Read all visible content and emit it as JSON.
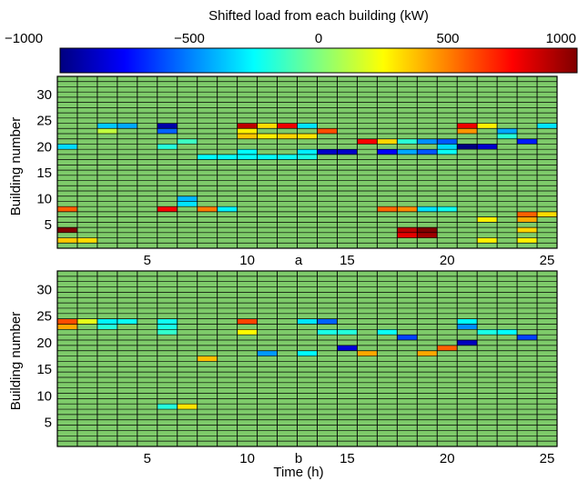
{
  "chart_data": {
    "type": "heatmap",
    "colorbar": {
      "title": "Shifted load from each building (kW)",
      "range": [
        -1000,
        1000
      ],
      "ticks": [
        -1000,
        -500,
        0,
        500,
        1000
      ],
      "tick_labels": [
        "−1000",
        "−500",
        "0",
        "500",
        "1000"
      ],
      "colormap": "jet"
    },
    "panels": [
      {
        "subplot_label": "a",
        "xlabel": "",
        "ylabel": "Building number",
        "x_range": [
          1,
          25
        ],
        "y_range": [
          1,
          33
        ],
        "x_ticks": [
          5,
          10,
          15,
          20,
          25
        ],
        "y_ticks": [
          5,
          10,
          15,
          20,
          25,
          30
        ],
        "grid": true,
        "cells": [
          {
            "t": 1,
            "b": 20,
            "v": -320
          },
          {
            "t": 1,
            "b": 8,
            "v": 570
          },
          {
            "t": 1,
            "b": 4,
            "v": 1000
          },
          {
            "t": 1,
            "b": 2,
            "v": 360
          },
          {
            "t": 2,
            "b": 2,
            "v": 320
          },
          {
            "t": 3,
            "b": 24,
            "v": -360
          },
          {
            "t": 3,
            "b": 23,
            "v": 130
          },
          {
            "t": 4,
            "b": 24,
            "v": -420
          },
          {
            "t": 6,
            "b": 24,
            "v": -920
          },
          {
            "t": 6,
            "b": 23,
            "v": -560
          },
          {
            "t": 6,
            "b": 20,
            "v": -180
          },
          {
            "t": 6,
            "b": 8,
            "v": 760
          },
          {
            "t": 7,
            "b": 21,
            "v": -130
          },
          {
            "t": 7,
            "b": 10,
            "v": -390
          },
          {
            "t": 7,
            "b": 9,
            "v": -300
          },
          {
            "t": 8,
            "b": 18,
            "v": -250
          },
          {
            "t": 8,
            "b": 8,
            "v": 510
          },
          {
            "t": 9,
            "b": 18,
            "v": -240
          },
          {
            "t": 9,
            "b": 8,
            "v": -270
          },
          {
            "t": 10,
            "b": 24,
            "v": 880
          },
          {
            "t": 10,
            "b": 23,
            "v": 280
          },
          {
            "t": 10,
            "b": 22,
            "v": 360
          },
          {
            "t": 10,
            "b": 19,
            "v": -250
          },
          {
            "t": 10,
            "b": 18,
            "v": -240
          },
          {
            "t": 11,
            "b": 24,
            "v": 320
          },
          {
            "t": 11,
            "b": 22,
            "v": 280
          },
          {
            "t": 11,
            "b": 18,
            "v": -240
          },
          {
            "t": 12,
            "b": 24,
            "v": 780
          },
          {
            "t": 12,
            "b": 22,
            "v": 330
          },
          {
            "t": 12,
            "b": 18,
            "v": -230
          },
          {
            "t": 13,
            "b": 24,
            "v": -300
          },
          {
            "t": 13,
            "b": 22,
            "v": 300
          },
          {
            "t": 13,
            "b": 19,
            "v": -280
          },
          {
            "t": 13,
            "b": 18,
            "v": -200
          },
          {
            "t": 14,
            "b": 23,
            "v": 600
          },
          {
            "t": 14,
            "b": 19,
            "v": -860
          },
          {
            "t": 15,
            "b": 19,
            "v": -860
          },
          {
            "t": 16,
            "b": 21,
            "v": 760
          },
          {
            "t": 17,
            "b": 21,
            "v": 330
          },
          {
            "t": 17,
            "b": 19,
            "v": -760
          },
          {
            "t": 17,
            "b": 8,
            "v": 550
          },
          {
            "t": 18,
            "b": 21,
            "v": -170
          },
          {
            "t": 18,
            "b": 19,
            "v": -420
          },
          {
            "t": 18,
            "b": 8,
            "v": 480
          },
          {
            "t": 18,
            "b": 4,
            "v": 880
          },
          {
            "t": 18,
            "b": 3,
            "v": 800
          },
          {
            "t": 19,
            "b": 21,
            "v": -470
          },
          {
            "t": 19,
            "b": 19,
            "v": -580
          },
          {
            "t": 19,
            "b": 8,
            "v": -300
          },
          {
            "t": 19,
            "b": 4,
            "v": 1000
          },
          {
            "t": 19,
            "b": 3,
            "v": 940
          },
          {
            "t": 20,
            "b": 21,
            "v": -580
          },
          {
            "t": 20,
            "b": 20,
            "v": -320
          },
          {
            "t": 20,
            "b": 19,
            "v": -230
          },
          {
            "t": 20,
            "b": 8,
            "v": -220
          },
          {
            "t": 21,
            "b": 24,
            "v": 780
          },
          {
            "t": 21,
            "b": 23,
            "v": 460
          },
          {
            "t": 21,
            "b": 20,
            "v": -1000
          },
          {
            "t": 22,
            "b": 24,
            "v": 280
          },
          {
            "t": 22,
            "b": 20,
            "v": -850
          },
          {
            "t": 22,
            "b": 6,
            "v": 280
          },
          {
            "t": 22,
            "b": 2,
            "v": 280
          },
          {
            "t": 23,
            "b": 23,
            "v": -420
          },
          {
            "t": 23,
            "b": 22,
            "v": -180
          },
          {
            "t": 24,
            "b": 21,
            "v": -700
          },
          {
            "t": 24,
            "b": 7,
            "v": 560
          },
          {
            "t": 24,
            "b": 6,
            "v": 420
          },
          {
            "t": 24,
            "b": 4,
            "v": 330
          },
          {
            "t": 24,
            "b": 2,
            "v": 280
          },
          {
            "t": 25,
            "b": 24,
            "v": -300
          },
          {
            "t": 25,
            "b": 7,
            "v": 320
          }
        ]
      },
      {
        "subplot_label": "b",
        "xlabel": "Time (h)",
        "ylabel": "Building number",
        "x_range": [
          1,
          25
        ],
        "y_range": [
          1,
          33
        ],
        "x_ticks": [
          5,
          10,
          15,
          20,
          25
        ],
        "y_ticks": [
          5,
          10,
          15,
          20,
          25,
          30
        ],
        "grid": true,
        "cells": [
          {
            "t": 1,
            "b": 24,
            "v": 600
          },
          {
            "t": 1,
            "b": 23,
            "v": 420
          },
          {
            "t": 2,
            "b": 24,
            "v": 200
          },
          {
            "t": 3,
            "b": 24,
            "v": -270
          },
          {
            "t": 3,
            "b": 23,
            "v": -180
          },
          {
            "t": 4,
            "b": 24,
            "v": -230
          },
          {
            "t": 6,
            "b": 24,
            "v": -220
          },
          {
            "t": 6,
            "b": 23,
            "v": -200
          },
          {
            "t": 6,
            "b": 22,
            "v": -150
          },
          {
            "t": 6,
            "b": 8,
            "v": -180
          },
          {
            "t": 7,
            "b": 8,
            "v": 300
          },
          {
            "t": 8,
            "b": 17,
            "v": 380
          },
          {
            "t": 10,
            "b": 24,
            "v": 620
          },
          {
            "t": 10,
            "b": 22,
            "v": 260
          },
          {
            "t": 11,
            "b": 18,
            "v": -450
          },
          {
            "t": 13,
            "b": 24,
            "v": -300
          },
          {
            "t": 13,
            "b": 18,
            "v": -250
          },
          {
            "t": 14,
            "b": 24,
            "v": -560
          },
          {
            "t": 14,
            "b": 22,
            "v": -200
          },
          {
            "t": 15,
            "b": 22,
            "v": -180
          },
          {
            "t": 15,
            "b": 19,
            "v": -820
          },
          {
            "t": 16,
            "b": 18,
            "v": 420
          },
          {
            "t": 17,
            "b": 22,
            "v": -230
          },
          {
            "t": 18,
            "b": 21,
            "v": -620
          },
          {
            "t": 19,
            "b": 18,
            "v": 420
          },
          {
            "t": 20,
            "b": 19,
            "v": 560
          },
          {
            "t": 21,
            "b": 24,
            "v": -250
          },
          {
            "t": 21,
            "b": 23,
            "v": -470
          },
          {
            "t": 21,
            "b": 20,
            "v": -880
          },
          {
            "t": 22,
            "b": 22,
            "v": -200
          },
          {
            "t": 23,
            "b": 22,
            "v": -250
          },
          {
            "t": 24,
            "b": 21,
            "v": -620
          }
        ]
      }
    ]
  }
}
